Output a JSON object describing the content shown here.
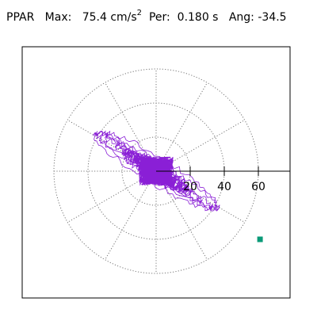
{
  "header": {
    "component": "PPAR",
    "max_label": "Max:",
    "max_value": "75.4",
    "max_unit": "cm/s",
    "max_unit_exp": "2",
    "period_label": "Per:",
    "period_value": "0.180 s",
    "angle_label": "Ang:",
    "angle_value": "-34.5"
  },
  "chart_data": {
    "type": "polar-orbit",
    "title": "PPAR  Max: 75.4 cm/s2  Per: 0.180 s  Ang: -34.5",
    "radial_ticks": [
      20,
      40,
      60
    ],
    "tick_labels": [
      "20",
      "40",
      "60"
    ],
    "rings": [
      20,
      40,
      60
    ],
    "spoke_step_deg": 30,
    "grid": true,
    "max_radius": 60,
    "peak_point": {
      "x": 61,
      "y": -40
    },
    "trace_color": "#8a1fd6",
    "marker_color": "#0a9a78",
    "grid_color": "#777777"
  }
}
